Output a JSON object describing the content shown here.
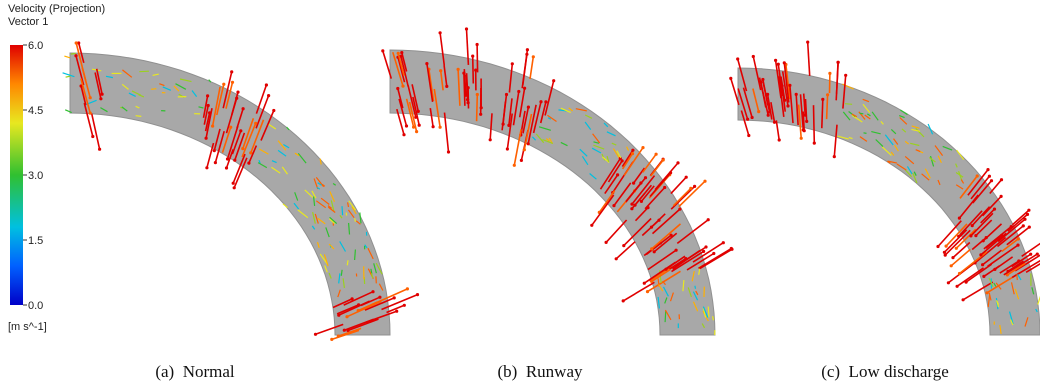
{
  "colorbar": {
    "title": "Velocity (Projection)",
    "subtitle": "Vector 1",
    "unit": "[m s^-1]",
    "lim": [
      0,
      6
    ],
    "ticks": [
      {
        "value": 0,
        "label": "0.0"
      },
      {
        "value": 1.5,
        "label": "1.5"
      },
      {
        "value": 3,
        "label": "3.0"
      },
      {
        "value": 4.5,
        "label": "4.5"
      },
      {
        "value": 6,
        "label": "6.0"
      }
    ]
  },
  "panels": [
    {
      "caption": "(a)  Normal"
    },
    {
      "caption": "(b)  Runway"
    },
    {
      "caption": "(c)  Low discharge"
    }
  ]
}
